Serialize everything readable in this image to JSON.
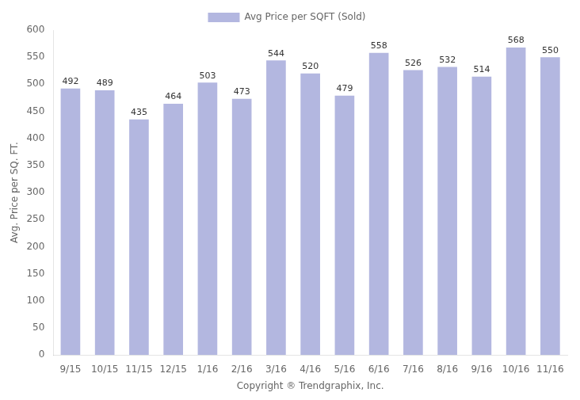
{
  "chart_data": {
    "type": "bar",
    "categories": [
      "9/15",
      "10/15",
      "11/15",
      "12/15",
      "1/16",
      "2/16",
      "3/16",
      "4/16",
      "5/16",
      "6/16",
      "7/16",
      "8/16",
      "9/16",
      "10/16",
      "11/16"
    ],
    "series": [
      {
        "name": "Avg Price per SQFT (Sold)",
        "color": "#b3b7e0",
        "values": [
          492,
          489,
          435,
          464,
          503,
          473,
          544,
          520,
          479,
          558,
          526,
          532,
          514,
          568,
          550
        ]
      }
    ],
    "xlabel": "Copyright ® Trendgraphix, Inc.",
    "ylabel": "Avg. Price per SQ. FT.",
    "ylim": [
      0,
      600
    ],
    "yticks": [
      0,
      50,
      100,
      150,
      200,
      250,
      300,
      350,
      400,
      450,
      500,
      550,
      600
    ],
    "grid": false,
    "legend": "top",
    "data_labels": true
  }
}
